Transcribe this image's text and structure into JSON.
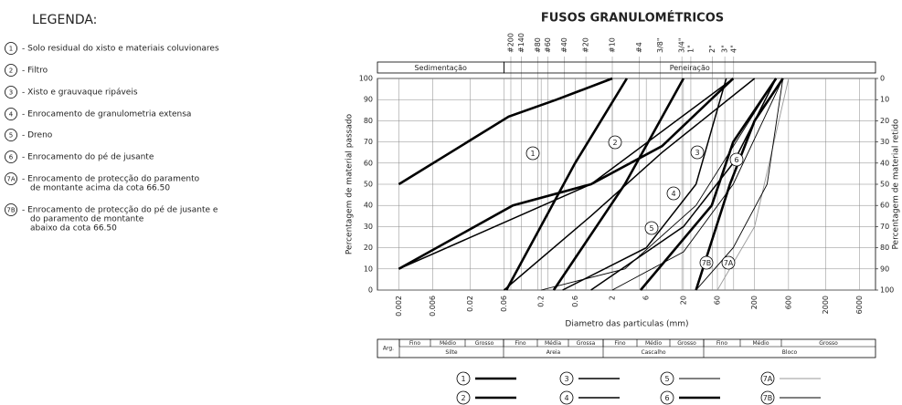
{
  "legend": {
    "title": "LEGENDA:",
    "items": [
      [
        "- Solo residual do xisto e materiais coluvionares"
      ],
      [
        "- Filtro"
      ],
      [
        "- Xisto e grauvaque ripáveis"
      ],
      [
        "- Enrocamento de granulometria extensa"
      ],
      [
        "- Dreno"
      ],
      [
        "- Enrocamento do pé de jusante"
      ],
      [
        "- Enrocamento de protecção do paramento",
        "de montante acima da cota 66.50"
      ],
      [
        "- Enrocamento de protecção do pé de jusante e",
        "do paramento de montante",
        "abaixo da cota 66.50"
      ]
    ]
  },
  "chart_data": {
    "type": "line",
    "title": "FUSOS GRANULOMÉTRICOS",
    "xlabel": "Diametro das particulas (mm)",
    "ylabel": "Percentagem de material passado",
    "y2label": "Percentagem de material retido",
    "xscale": "log",
    "xlim": [
      0.001,
      10000
    ],
    "xticks": [
      0.002,
      0.006,
      0.02,
      0.06,
      0.2,
      0.6,
      2,
      6,
      20,
      60,
      200,
      600,
      2000,
      6000
    ],
    "ylim": [
      0,
      100
    ],
    "yticks": [
      0,
      10,
      20,
      30,
      40,
      50,
      60,
      70,
      80,
      90,
      100
    ],
    "y2lim": [
      100,
      0
    ],
    "y2ticks": [
      0,
      10,
      20,
      30,
      40,
      50,
      60,
      70,
      80,
      90,
      100
    ],
    "grid": true,
    "top_ticks": [
      {
        "value": 0.075,
        "label": "#200"
      },
      {
        "value": 0.106,
        "label": "#140"
      },
      {
        "value": 0.18,
        "label": "#80"
      },
      {
        "value": 0.25,
        "label": "#60"
      },
      {
        "value": 0.425,
        "label": "#40"
      },
      {
        "value": 0.85,
        "label": "#20"
      },
      {
        "value": 2,
        "label": "#10"
      },
      {
        "value": 4.75,
        "label": "#4"
      },
      {
        "value": 9.5,
        "label": "3/8\""
      },
      {
        "value": 19,
        "label": "3/4\""
      },
      {
        "value": 25.4,
        "label": "1\""
      },
      {
        "value": 50.8,
        "label": "2\""
      },
      {
        "value": 76.2,
        "label": "3\""
      },
      {
        "value": 101.6,
        "label": "4\""
      }
    ],
    "sections": [
      {
        "label": "Sedimentação",
        "range": [
          0.001,
          0.06
        ]
      },
      {
        "label": "Peneiração",
        "range": [
          0.06,
          10000
        ]
      }
    ],
    "series": [
      {
        "name": "1",
        "color": "#000000",
        "width": 2.6,
        "bounds": [
          {
            "x": [
              0.002,
              0.07,
              0.33,
              2
            ],
            "values": [
              50,
              82,
              90,
              100
            ]
          },
          {
            "x": [
              0.002,
              0.08,
              1,
              10,
              100
            ],
            "values": [
              10,
              40,
              50,
              68,
              100
            ]
          }
        ]
      },
      {
        "name": "2",
        "color": "#000000",
        "width": 2.6,
        "bounds": [
          {
            "x": [
              0.065,
              0.6,
              3.2
            ],
            "values": [
              0,
              60,
              100
            ]
          },
          {
            "x": [
              0.3,
              3,
              20
            ],
            "values": [
              0,
              50,
              100
            ]
          }
        ]
      },
      {
        "name": "3",
        "color": "#000000",
        "width": 1.5,
        "bounds": [
          {
            "x": [
              0.002,
              1,
              100
            ],
            "values": [
              10,
              50,
              100
            ]
          },
          {
            "x": [
              0.4,
              6,
              30,
              80
            ],
            "values": [
              0,
              20,
              50,
              100
            ]
          }
        ]
      },
      {
        "name": "4",
        "color": "#000000",
        "width": 1.5,
        "bounds": [
          {
            "x": [
              0.06,
              1,
              10,
              200
            ],
            "values": [
              0,
              35,
              65,
              100
            ]
          },
          {
            "x": [
              1,
              20,
              100,
              400
            ],
            "values": [
              0,
              30,
              60,
              100
            ]
          }
        ]
      },
      {
        "name": "5",
        "color": "#000000",
        "width": 0.9,
        "bounds": [
          {
            "x": [
              0.2,
              3,
              30,
              400
            ],
            "values": [
              0,
              10,
              40,
              100
            ]
          },
          {
            "x": [
              2,
              20,
              100,
              500
            ],
            "values": [
              0,
              18,
              50,
              100
            ]
          }
        ]
      },
      {
        "name": "6",
        "color": "#000000",
        "width": 2.6,
        "bounds": [
          {
            "x": [
              5,
              50,
              100,
              400
            ],
            "values": [
              0,
              40,
              70,
              100
            ]
          },
          {
            "x": [
              30,
              90,
              200,
              500
            ],
            "values": [
              0,
              50,
              80,
              100
            ]
          }
        ]
      },
      {
        "name": "7A",
        "color": "#999999",
        "width": 0.9,
        "bounds": [
          {
            "x": [
              60,
              200,
              600
            ],
            "values": [
              0,
              30,
              100
            ]
          }
        ]
      },
      {
        "name": "7B",
        "color": "#000000",
        "width": 0.9,
        "bounds": [
          {
            "x": [
              30,
              100,
              300,
              500
            ],
            "values": [
              0,
              20,
              50,
              100
            ]
          }
        ]
      }
    ]
  },
  "classification": {
    "first": "Arg.",
    "fractions": [
      {
        "name": "Silte",
        "subs": [
          "Fino",
          "Médio",
          "Grosso"
        ]
      },
      {
        "name": "Areia",
        "subs": [
          "Fino",
          "Média",
          "Grossa"
        ]
      },
      {
        "name": "Cascalho",
        "subs": [
          "Fino",
          "Médio",
          "Grosso"
        ]
      },
      {
        "name": "Bloco",
        "subs": [
          "Fino",
          "Médio",
          "Grosso"
        ]
      }
    ]
  }
}
